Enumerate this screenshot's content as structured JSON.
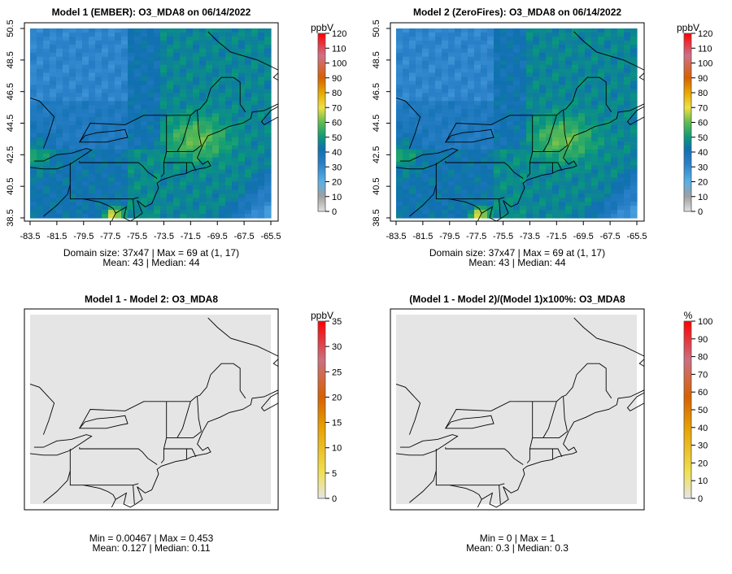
{
  "panels": [
    {
      "title": "Model 1 (EMBER): O3_MDA8 on 06/14/2022",
      "unit": "ppbV",
      "type": "field",
      "scale_max": 120,
      "ticks": [
        0,
        10,
        20,
        30,
        40,
        50,
        60,
        70,
        80,
        90,
        100,
        110,
        120
      ],
      "caption1": "Domain size: 37x47 | Max = 69 at (1, 17)",
      "caption2": "Mean: 43 |  Median: 44",
      "show_axes": true
    },
    {
      "title": "Model 2 (ZeroFires): O3_MDA8 on 06/14/2022",
      "unit": "ppbV",
      "type": "field",
      "scale_max": 120,
      "ticks": [
        0,
        10,
        20,
        30,
        40,
        50,
        60,
        70,
        80,
        90,
        100,
        110,
        120
      ],
      "caption1": "Domain size: 37x47 | Max = 69 at (1, 17)",
      "caption2": "Mean: 43 |  Median: 44",
      "show_axes": true
    },
    {
      "title": "Model 1 - Model 2: O3_MDA8",
      "unit": "ppbV",
      "type": "diff",
      "scale_max": 35,
      "ticks": [
        0,
        5,
        10,
        15,
        20,
        25,
        30,
        35
      ],
      "caption1": "Min = 0.00467 | Max = 0.453",
      "caption2": "Mean: 0.127 |  Median: 0.11",
      "show_axes": false
    },
    {
      "title": "(Model 1 - Model 2)/(Model 1)x100%: O3_MDA8",
      "unit": "%",
      "type": "diff",
      "scale_max": 100,
      "ticks": [
        0,
        10,
        20,
        30,
        40,
        50,
        60,
        70,
        80,
        90,
        100
      ],
      "caption1": "Min = 0 | Max = 1",
      "caption2": "Mean: 0.3 |  Median: 0.3",
      "show_axes": false
    }
  ],
  "lon_ticks": [
    "-83.5",
    "-81.5",
    "-79.5",
    "-77.5",
    "-75.5",
    "-73.5",
    "-71.5",
    "-69.5",
    "-67.5",
    "-65.5"
  ],
  "lat_ticks": [
    "38.5",
    "40.5",
    "42.5",
    "44.5",
    "46.5",
    "48.5",
    "50.5"
  ],
  "colors": {
    "diff_fill": "#e5e5e5"
  }
}
